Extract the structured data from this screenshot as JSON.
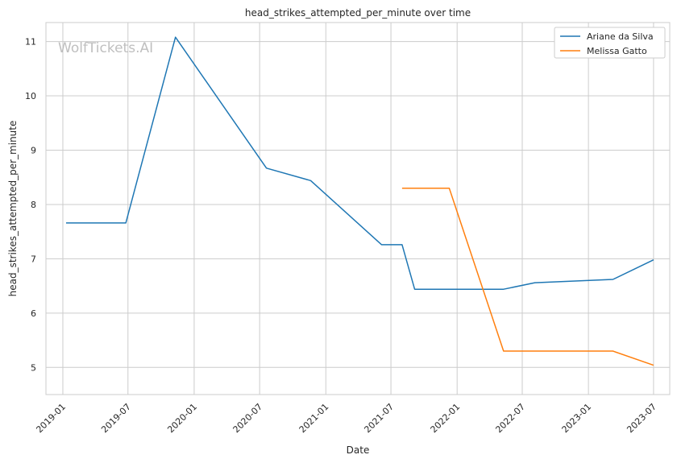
{
  "chart_data": {
    "type": "line",
    "title": "head_strikes_attempted_per_minute over time",
    "xlabel": "Date",
    "ylabel": "head_strikes_attempted_per_minute",
    "x_ticks": [
      "2019-01",
      "2019-07",
      "2020-01",
      "2020-07",
      "2021-01",
      "2021-07",
      "2022-01",
      "2022-07",
      "2023-01",
      "2023-07"
    ],
    "y_ticks": [
      5,
      6,
      7,
      8,
      9,
      10,
      11
    ],
    "xlim": [
      "2018-11-15",
      "2023-08-15"
    ],
    "ylim": [
      4.5,
      11.35
    ],
    "grid": true,
    "legend_position": "top-right",
    "watermark": "WolfTickets.AI",
    "series": [
      {
        "name": "Ariane da Silva",
        "color": "#1f77b4",
        "points": [
          {
            "x": "2019-01-10",
            "y": 7.66
          },
          {
            "x": "2019-06-25",
            "y": 7.66
          },
          {
            "x": "2019-11-10",
            "y": 11.08
          },
          {
            "x": "2020-07-20",
            "y": 8.67
          },
          {
            "x": "2020-11-20",
            "y": 8.44
          },
          {
            "x": "2021-06-05",
            "y": 7.26
          },
          {
            "x": "2021-08-01",
            "y": 7.26
          },
          {
            "x": "2021-09-05",
            "y": 6.44
          },
          {
            "x": "2022-05-10",
            "y": 6.44
          },
          {
            "x": "2022-08-05",
            "y": 6.56
          },
          {
            "x": "2023-03-10",
            "y": 6.62
          },
          {
            "x": "2023-07-01",
            "y": 6.98
          }
        ]
      },
      {
        "name": "Melissa Gatto",
        "color": "#ff7f0e",
        "points": [
          {
            "x": "2021-08-01",
            "y": 8.3
          },
          {
            "x": "2021-12-10",
            "y": 8.3
          },
          {
            "x": "2022-05-10",
            "y": 5.3
          },
          {
            "x": "2023-03-10",
            "y": 5.3
          },
          {
            "x": "2023-07-01",
            "y": 5.04
          }
        ]
      }
    ]
  }
}
